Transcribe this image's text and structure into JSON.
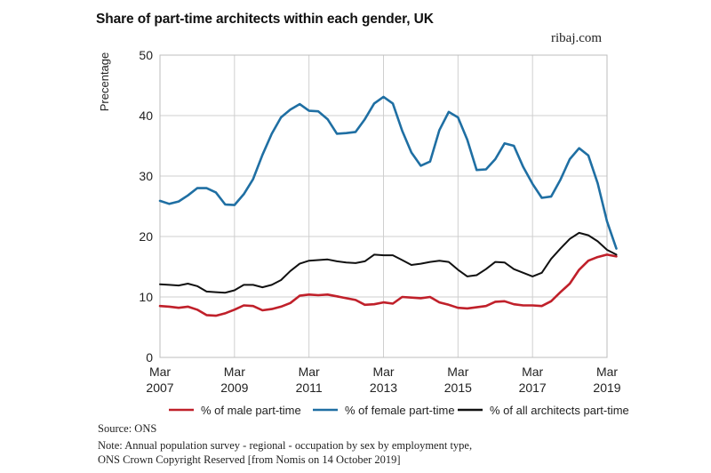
{
  "title": "Share of part-time architects within each gender, UK",
  "brand": "ribaj.com",
  "source": "Source: ONS",
  "notes": [
    "Note: Annual population survey - regional - occupation by sex by employment type,",
    "ONS Crown Copyright Reserved [from Nomis on 14 October 2019]"
  ],
  "chart_data": {
    "type": "line",
    "title": "Share of part-time architects within each gender, UK",
    "ylabel": "Precentage",
    "xlabel": "",
    "ylim": [
      0,
      50
    ],
    "yticks": [
      0,
      10,
      20,
      30,
      40,
      50
    ],
    "xlim": [
      2007,
      2019
    ],
    "xticks": [
      {
        "month": "Mar",
        "year": "2007",
        "x": 2007
      },
      {
        "month": "Mar",
        "year": "2009",
        "x": 2009
      },
      {
        "month": "Mar",
        "year": "2011",
        "x": 2011
      },
      {
        "month": "Mar",
        "year": "2013",
        "x": 2013
      },
      {
        "month": "Mar",
        "year": "2015",
        "x": 2015
      },
      {
        "month": "Mar",
        "year": "2017",
        "x": 2017
      },
      {
        "month": "Mar",
        "year": "2019",
        "x": 2019
      }
    ],
    "grid": true,
    "legend_position": "bottom",
    "series": [
      {
        "name": "% of male part-time",
        "color": "#c0202a",
        "points": [
          [
            2007.0,
            8.5
          ],
          [
            2007.25,
            8.4
          ],
          [
            2007.5,
            8.2
          ],
          [
            2007.75,
            8.4
          ],
          [
            2008.0,
            7.9
          ],
          [
            2008.25,
            7.0
          ],
          [
            2008.5,
            6.9
          ],
          [
            2008.75,
            7.3
          ],
          [
            2009.0,
            7.9
          ],
          [
            2009.25,
            8.6
          ],
          [
            2009.5,
            8.5
          ],
          [
            2009.75,
            7.8
          ],
          [
            2010.0,
            8.0
          ],
          [
            2010.25,
            8.4
          ],
          [
            2010.5,
            9.0
          ],
          [
            2010.75,
            10.2
          ],
          [
            2011.0,
            10.4
          ],
          [
            2011.25,
            10.3
          ],
          [
            2011.5,
            10.4
          ],
          [
            2011.75,
            10.1
          ],
          [
            2012.0,
            9.8
          ],
          [
            2012.25,
            9.5
          ],
          [
            2012.5,
            8.7
          ],
          [
            2012.75,
            8.8
          ],
          [
            2013.0,
            9.1
          ],
          [
            2013.25,
            8.9
          ],
          [
            2013.5,
            10.0
          ],
          [
            2013.75,
            9.9
          ],
          [
            2014.0,
            9.8
          ],
          [
            2014.25,
            10.0
          ],
          [
            2014.5,
            9.1
          ],
          [
            2014.75,
            8.7
          ],
          [
            2015.0,
            8.2
          ],
          [
            2015.25,
            8.1
          ],
          [
            2015.5,
            8.3
          ],
          [
            2015.75,
            8.5
          ],
          [
            2016.0,
            9.2
          ],
          [
            2016.25,
            9.3
          ],
          [
            2016.5,
            8.8
          ],
          [
            2016.75,
            8.6
          ],
          [
            2017.0,
            8.6
          ],
          [
            2017.25,
            8.5
          ],
          [
            2017.5,
            9.3
          ],
          [
            2017.75,
            10.8
          ],
          [
            2018.0,
            12.2
          ],
          [
            2018.25,
            14.5
          ],
          [
            2018.5,
            16.0
          ],
          [
            2018.75,
            16.6
          ],
          [
            2019.0,
            17.0
          ],
          [
            2019.25,
            16.7
          ]
        ]
      },
      {
        "name": "% of female part-time",
        "color": "#1f6fa3",
        "points": [
          [
            2007.0,
            25.9
          ],
          [
            2007.25,
            25.4
          ],
          [
            2007.5,
            25.8
          ],
          [
            2007.75,
            26.8
          ],
          [
            2008.0,
            28.0
          ],
          [
            2008.25,
            28.0
          ],
          [
            2008.5,
            27.3
          ],
          [
            2008.75,
            25.3
          ],
          [
            2009.0,
            25.2
          ],
          [
            2009.25,
            27.0
          ],
          [
            2009.5,
            29.5
          ],
          [
            2009.75,
            33.5
          ],
          [
            2010.0,
            37.0
          ],
          [
            2010.25,
            39.7
          ],
          [
            2010.5,
            41.0
          ],
          [
            2010.75,
            41.9
          ],
          [
            2011.0,
            40.8
          ],
          [
            2011.25,
            40.7
          ],
          [
            2011.5,
            39.4
          ],
          [
            2011.75,
            37.0
          ],
          [
            2012.0,
            37.1
          ],
          [
            2012.25,
            37.3
          ],
          [
            2012.5,
            39.4
          ],
          [
            2012.75,
            42.0
          ],
          [
            2013.0,
            43.1
          ],
          [
            2013.25,
            42.0
          ],
          [
            2013.5,
            37.5
          ],
          [
            2013.75,
            33.9
          ],
          [
            2014.0,
            31.7
          ],
          [
            2014.25,
            32.4
          ],
          [
            2014.5,
            37.6
          ],
          [
            2014.75,
            40.6
          ],
          [
            2015.0,
            39.7
          ],
          [
            2015.25,
            36.0
          ],
          [
            2015.5,
            31.0
          ],
          [
            2015.75,
            31.1
          ],
          [
            2016.0,
            32.8
          ],
          [
            2016.25,
            35.4
          ],
          [
            2016.5,
            35.0
          ],
          [
            2016.75,
            31.5
          ],
          [
            2017.0,
            28.7
          ],
          [
            2017.25,
            26.4
          ],
          [
            2017.5,
            26.6
          ],
          [
            2017.75,
            29.4
          ],
          [
            2018.0,
            32.8
          ],
          [
            2018.25,
            34.6
          ],
          [
            2018.5,
            33.4
          ],
          [
            2018.75,
            28.8
          ],
          [
            2019.0,
            22.5
          ],
          [
            2019.25,
            18.0
          ]
        ]
      },
      {
        "name": "% of all architects part-time",
        "color": "#111111",
        "points": [
          [
            2007.0,
            12.1
          ],
          [
            2007.25,
            12.0
          ],
          [
            2007.5,
            11.9
          ],
          [
            2007.75,
            12.2
          ],
          [
            2008.0,
            11.8
          ],
          [
            2008.25,
            10.9
          ],
          [
            2008.5,
            10.8
          ],
          [
            2008.75,
            10.7
          ],
          [
            2009.0,
            11.1
          ],
          [
            2009.25,
            12.0
          ],
          [
            2009.5,
            12.0
          ],
          [
            2009.75,
            11.6
          ],
          [
            2010.0,
            12.0
          ],
          [
            2010.25,
            12.8
          ],
          [
            2010.5,
            14.3
          ],
          [
            2010.75,
            15.5
          ],
          [
            2011.0,
            16.0
          ],
          [
            2011.25,
            16.1
          ],
          [
            2011.5,
            16.2
          ],
          [
            2011.75,
            15.9
          ],
          [
            2012.0,
            15.7
          ],
          [
            2012.25,
            15.6
          ],
          [
            2012.5,
            15.9
          ],
          [
            2012.75,
            17.0
          ],
          [
            2013.0,
            16.9
          ],
          [
            2013.25,
            16.9
          ],
          [
            2013.5,
            16.1
          ],
          [
            2013.75,
            15.3
          ],
          [
            2014.0,
            15.5
          ],
          [
            2014.25,
            15.8
          ],
          [
            2014.5,
            16.0
          ],
          [
            2014.75,
            15.8
          ],
          [
            2015.0,
            14.5
          ],
          [
            2015.25,
            13.4
          ],
          [
            2015.5,
            13.6
          ],
          [
            2015.75,
            14.6
          ],
          [
            2016.0,
            15.8
          ],
          [
            2016.25,
            15.7
          ],
          [
            2016.5,
            14.6
          ],
          [
            2016.75,
            14.0
          ],
          [
            2017.0,
            13.4
          ],
          [
            2017.25,
            14.0
          ],
          [
            2017.5,
            16.3
          ],
          [
            2017.75,
            18.0
          ],
          [
            2018.0,
            19.6
          ],
          [
            2018.25,
            20.6
          ],
          [
            2018.5,
            20.2
          ],
          [
            2018.75,
            19.2
          ],
          [
            2019.0,
            17.8
          ],
          [
            2019.25,
            17.0
          ]
        ]
      }
    ]
  }
}
